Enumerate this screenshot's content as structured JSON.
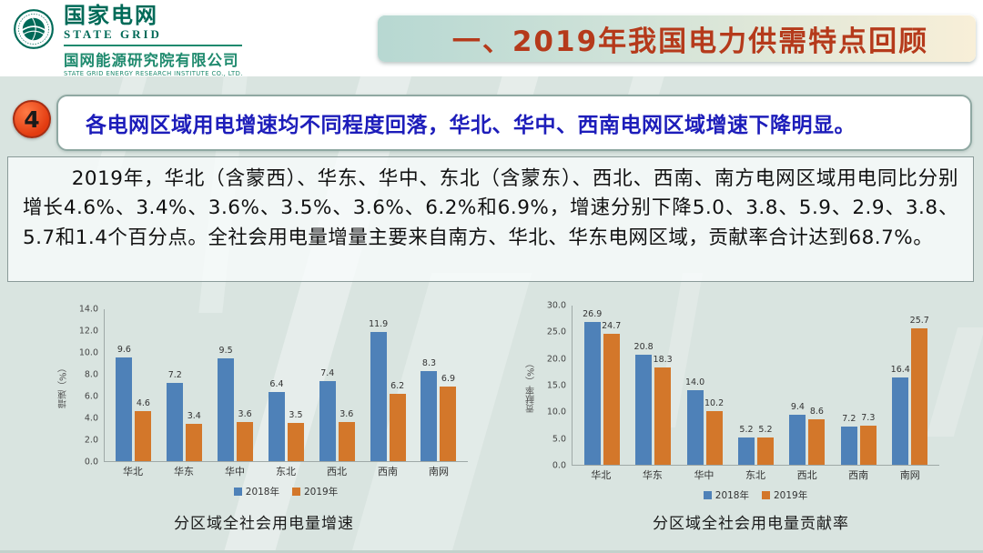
{
  "logo": {
    "org_cn": "国家电网",
    "org_en": "STATE GRID",
    "institute_cn": "国网能源研究院有限公司",
    "institute_en": "STATE GRID ENERGY RESEARCH INSTITUTE CO., LTD.",
    "brand_color": "#006a58"
  },
  "header": {
    "title": "一、2019年我国电力供需特点回顾",
    "title_color": "#b53a1b"
  },
  "section": {
    "number": "4",
    "headline": "各电网区域用电增速均不同程度回落，华北、华中、西南电网区域增速下降明显。",
    "badge_color": "#e23b10",
    "headline_color": "#1d1dba"
  },
  "body": {
    "paragraph": "2019年，华北（含蒙西）、华东、华中、东北（含蒙东）、西北、西南、南方电网区域用电同比分别增长4.6%、3.4%、3.6%、3.5%、3.6%、6.2%和6.9%，增速分别下降5.0、3.8、5.9、2.9、3.8、5.7和1.4个百分点。全社会用电量增量主要来自南方、华北、华东电网区域，贡献率合计达到68.7%。"
  },
  "chart_data": [
    {
      "type": "bar",
      "title": "分区域全社会用电量增速",
      "categories": [
        "华北",
        "华东",
        "华中",
        "东北",
        "西北",
        "西南",
        "南网"
      ],
      "series": [
        {
          "name": "2018年",
          "color": "#4e81b8",
          "values": [
            9.6,
            7.2,
            9.5,
            6.4,
            7.4,
            11.9,
            8.3
          ]
        },
        {
          "name": "2019年",
          "color": "#d3772a",
          "values": [
            4.6,
            3.4,
            3.6,
            3.5,
            3.6,
            6.2,
            6.9
          ]
        }
      ],
      "xlabel": "",
      "ylabel": "增速（%）",
      "ylim": [
        0,
        14
      ],
      "ytick_step": 2,
      "grid": false,
      "legend_position": "bottom"
    },
    {
      "type": "bar",
      "title": "分区域全社会用电量贡献率",
      "categories": [
        "华北",
        "华东",
        "华中",
        "东北",
        "西北",
        "西南",
        "南网"
      ],
      "series": [
        {
          "name": "2018年",
          "color": "#4e81b8",
          "values": [
            26.9,
            20.8,
            14.0,
            5.2,
            9.4,
            7.2,
            16.4
          ]
        },
        {
          "name": "2019年",
          "color": "#d3772a",
          "values": [
            24.7,
            18.3,
            10.2,
            5.2,
            8.6,
            7.3,
            25.7
          ]
        }
      ],
      "xlabel": "",
      "ylabel": "贡献率（%）",
      "ylim": [
        0,
        30
      ],
      "ytick_step": 5,
      "grid": false,
      "legend_position": "bottom"
    }
  ]
}
